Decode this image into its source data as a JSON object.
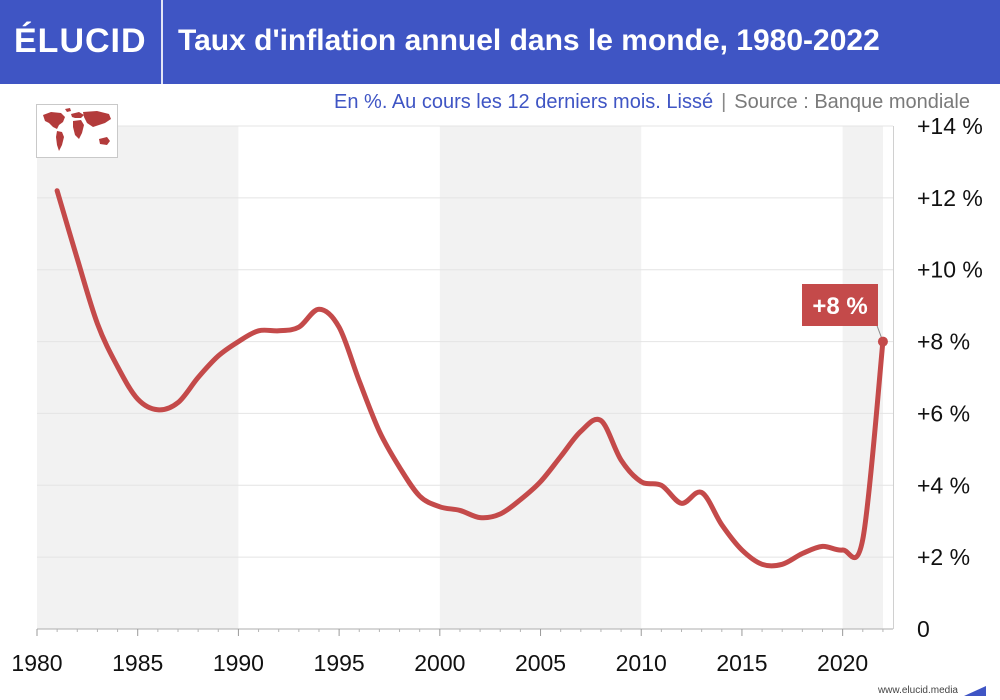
{
  "header": {
    "logo": "ÉLUCID",
    "title": "Taux d'inflation annuel dans le monde, 1980-2022"
  },
  "subtitle": {
    "description": "En %. Au cours les 12 derniers mois. Lissé",
    "separator": "|",
    "source": "Source : Banque mondiale"
  },
  "footer": {
    "url": "www.elucid.media"
  },
  "icons": {
    "map": "world-map-icon",
    "footer": "elucid-mark-icon"
  },
  "colors": {
    "brand": "#3f55c4",
    "line": "#c44a4a",
    "label_bg": "#c44a4a",
    "band": "#f2f2f2"
  },
  "chart_data": {
    "type": "line",
    "x_ticks": [
      1980,
      1985,
      1990,
      1995,
      2000,
      2005,
      2010,
      2015,
      2020
    ],
    "x_tick_labels": [
      "1980",
      "1985",
      "1990",
      "1995",
      "2000",
      "2005",
      "2010",
      "2015",
      "2020"
    ],
    "y_ticks": [
      0,
      2,
      4,
      6,
      8,
      10,
      12,
      14
    ],
    "y_tick_labels": [
      "0",
      "+2 %",
      "+4 %",
      "+6 %",
      "+8 %",
      "+10 %",
      "+12 %",
      "+14 %"
    ],
    "xlim": [
      1980,
      2022.5
    ],
    "ylim": [
      0,
      14
    ],
    "shaded_decades": [
      [
        1980,
        1990
      ],
      [
        2000,
        2010
      ],
      [
        2020,
        2022
      ]
    ],
    "series": [
      {
        "x": [
          1981,
          1982,
          1983,
          1984,
          1985,
          1986,
          1987,
          1988,
          1989,
          1990,
          1991,
          1992,
          1993,
          1994,
          1995,
          1996,
          1997,
          1998,
          1999,
          2000,
          2001,
          2002,
          2003,
          2004,
          2005,
          2006,
          2007,
          2008,
          2009,
          2010,
          2011,
          2012,
          2013,
          2014,
          2015,
          2016,
          2017,
          2018,
          2019,
          2020,
          2021,
          2022
        ],
        "y": [
          12.2,
          10.3,
          8.5,
          7.3,
          6.4,
          6.1,
          6.3,
          7.0,
          7.6,
          8.0,
          8.3,
          8.3,
          8.4,
          8.9,
          8.4,
          6.9,
          5.5,
          4.5,
          3.7,
          3.4,
          3.3,
          3.1,
          3.2,
          3.6,
          4.1,
          4.8,
          5.5,
          5.8,
          4.7,
          4.1,
          4.0,
          3.5,
          3.8,
          2.9,
          2.2,
          1.8,
          1.8,
          2.1,
          2.3,
          2.2,
          2.5,
          8.0
        ]
      }
    ],
    "annotation": {
      "x": 2022,
      "y": 8.0,
      "text": "+8 %"
    }
  }
}
